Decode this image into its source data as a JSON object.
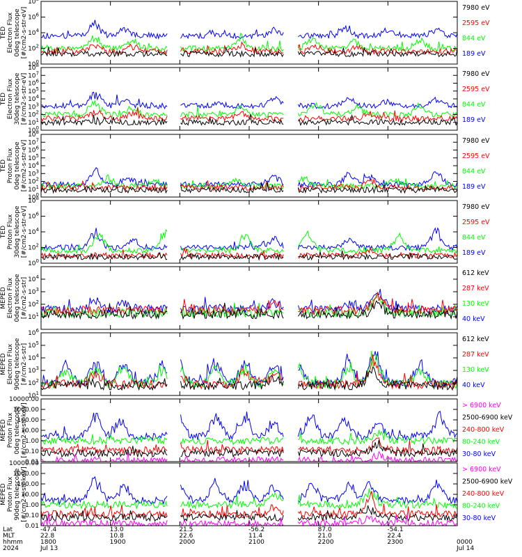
{
  "colors": {
    "blue": "#0000ff",
    "red": "#ff0000",
    "green": "#00ff00",
    "black": "#000000",
    "magenta": "#ff00ff"
  },
  "chart_data": [
    {
      "type": "line",
      "scale": "log",
      "ylim_exp": [
        0,
        8
      ],
      "ylabel": [
        "TED",
        "Electron Flux",
        "0deg telescope",
        "[#/cm2-s-str-eV]"
      ],
      "tick_exps": [
        0,
        2,
        4,
        6,
        8
      ],
      "series": [
        {
          "name": "189 eV",
          "color": "#0000ff",
          "base": 3.6,
          "peaks": [
            [
              0.13,
              1.8
            ],
            [
              0.2,
              0.9
            ],
            [
              0.42,
              0.4
            ],
            [
              0.56,
              0.9
            ],
            [
              0.73,
              1.1
            ],
            [
              0.83,
              0.7
            ],
            [
              0.95,
              0.9
            ]
          ]
        },
        {
          "name": "844 eV",
          "color": "#00ff00",
          "base": 2.0,
          "peaks": [
            [
              0.13,
              1.4
            ],
            [
              0.22,
              1.2
            ],
            [
              0.48,
              1.3
            ],
            [
              0.65,
              1.4
            ],
            [
              0.75,
              1.0
            ],
            [
              0.91,
              1.4
            ]
          ]
        },
        {
          "name": "2595 eV",
          "color": "#ff0000",
          "base": 1.6,
          "peaks": [
            [
              0.13,
              0.9
            ],
            [
              0.22,
              0.8
            ],
            [
              0.48,
              1.0
            ],
            [
              0.66,
              0.8
            ],
            [
              0.76,
              0.6
            ]
          ]
        },
        {
          "name": "7980 eV",
          "color": "#000000",
          "base": 1.3,
          "peaks": []
        }
      ],
      "legend": [
        "7980 eV",
        "2595 eV",
        "844 eV",
        "189 eV"
      ]
    },
    {
      "type": "line",
      "scale": "log",
      "ylim_exp": [
        0,
        8
      ],
      "ylabel": [
        "TED",
        "Electron Flux",
        "30deg telescope",
        "[#/cm2-s-str-eV]"
      ],
      "tick_exps": [
        0,
        1,
        2,
        3,
        4,
        5,
        6,
        7,
        8
      ],
      "series": [
        {
          "name": "189 eV",
          "color": "#0000ff",
          "base": 3.1,
          "peaks": [
            [
              0.13,
              1.9
            ],
            [
              0.2,
              1.0
            ],
            [
              0.43,
              0.4
            ],
            [
              0.56,
              1.0
            ],
            [
              0.74,
              1.2
            ],
            [
              0.83,
              0.8
            ],
            [
              0.95,
              0.9
            ]
          ]
        },
        {
          "name": "844 eV",
          "color": "#00ff00",
          "base": 2.0,
          "peaks": [
            [
              0.13,
              1.7
            ],
            [
              0.22,
              1.0
            ],
            [
              0.48,
              1.3
            ],
            [
              0.66,
              1.5
            ],
            [
              0.76,
              1.1
            ],
            [
              0.91,
              1.4
            ]
          ]
        },
        {
          "name": "2595 eV",
          "color": "#ff0000",
          "base": 1.5,
          "peaks": [
            [
              0.13,
              1.0
            ],
            [
              0.22,
              0.8
            ],
            [
              0.48,
              0.9
            ],
            [
              0.79,
              0.8
            ]
          ]
        },
        {
          "name": "7980 eV",
          "color": "#000000",
          "base": 1.0,
          "peaks": []
        }
      ],
      "legend": [
        "7980 eV",
        "2595 eV",
        "844 eV",
        "189 eV"
      ]
    },
    {
      "type": "line",
      "scale": "log",
      "ylim_exp": [
        0,
        8
      ],
      "ylabel": [
        "TED",
        "Proton Flux",
        "0deg telescope",
        "[#/cm2-s-str-eV]"
      ],
      "tick_exps": [
        0,
        1,
        2,
        3,
        4,
        5,
        6,
        7,
        8
      ],
      "series": [
        {
          "name": "189 eV",
          "color": "#0000ff",
          "base": 1.6,
          "peaks": [
            [
              0.13,
              2.0
            ],
            [
              0.21,
              1.2
            ],
            [
              0.56,
              1.4
            ],
            [
              0.74,
              1.5
            ],
            [
              0.79,
              1.1
            ],
            [
              0.95,
              1.8
            ]
          ]
        },
        {
          "name": "844 eV",
          "color": "#00ff00",
          "base": 1.4,
          "peaks": [
            [
              0.16,
              1.2
            ],
            [
              0.27,
              0.9
            ],
            [
              0.47,
              1.0
            ],
            [
              0.63,
              1.2
            ],
            [
              0.85,
              1.0
            ]
          ]
        },
        {
          "name": "2595 eV",
          "color": "#ff0000",
          "base": 1.2,
          "peaks": [
            [
              0.79,
              1.3
            ]
          ]
        },
        {
          "name": "7980 eV",
          "color": "#000000",
          "base": 0.9,
          "peaks": []
        }
      ],
      "legend": [
        "7980 eV",
        "2595 eV",
        "844 eV",
        "189 eV"
      ]
    },
    {
      "type": "line",
      "scale": "log",
      "ylim_exp": [
        0,
        8
      ],
      "ylabel": [
        "TED",
        "Proton Flux",
        "30deg telescope",
        "[#/cm2-s-str-eV]"
      ],
      "tick_exps": [
        0,
        2,
        4,
        6,
        8
      ],
      "series": [
        {
          "name": "189 eV",
          "color": "#0000ff",
          "base": 2.0,
          "peaks": [
            [
              0.13,
              2.3
            ],
            [
              0.22,
              1.2
            ],
            [
              0.56,
              1.3
            ],
            [
              0.74,
              1.5
            ],
            [
              0.95,
              2.4
            ]
          ]
        },
        {
          "name": "844 eV",
          "color": "#00ff00",
          "base": 1.6,
          "peaks": [
            [
              0.14,
              2.4
            ],
            [
              0.3,
              3.0
            ],
            [
              0.49,
              2.5
            ],
            [
              0.64,
              2.7
            ],
            [
              0.86,
              2.2
            ]
          ]
        },
        {
          "name": "2595 eV",
          "color": "#ff0000",
          "base": 1.0,
          "peaks": [
            [
              0.79,
              0.8
            ]
          ]
        },
        {
          "name": "7980 eV",
          "color": "#000000",
          "base": 0.8,
          "peaks": []
        }
      ],
      "legend": [
        "7980 eV",
        "2595 eV",
        "844 eV",
        "189 eV"
      ]
    },
    {
      "type": "line",
      "scale": "log",
      "ylim_exp": [
        0,
        5
      ],
      "ylabel": [
        "MEPED",
        "Electron Flux",
        "0deg telescope",
        "[#/cm2-s-str]"
      ],
      "tick_exps": [
        1,
        2,
        3,
        4
      ],
      "series": [
        {
          "name": "40 keV",
          "color": "#0000ff",
          "base": 1.6,
          "peaks": [
            [
              0.13,
              0.8
            ],
            [
              0.2,
              0.6
            ],
            [
              0.56,
              0.8
            ],
            [
              0.74,
              0.6
            ],
            [
              0.81,
              1.7
            ]
          ]
        },
        {
          "name": "130 keV",
          "color": "#00ff00",
          "base": 1.3,
          "peaks": [
            [
              0.81,
              1.5
            ]
          ]
        },
        {
          "name": "287 keV",
          "color": "#ff0000",
          "base": 1.5,
          "peaks": [
            [
              0.56,
              0.6
            ],
            [
              0.81,
              1.6
            ]
          ]
        },
        {
          "name": "612 keV",
          "color": "#000000",
          "base": 1.2,
          "peaks": [
            [
              0.81,
              1.0
            ]
          ]
        }
      ],
      "legend": [
        "612 keV",
        "287 keV",
        "130 keV",
        "40 keV"
      ]
    },
    {
      "type": "line",
      "scale": "log",
      "ylim_exp": [
        1,
        6
      ],
      "ylabel": [
        "MEPED",
        "Electron Flux",
        "90deg telescope",
        "[#/cm2-s-str]"
      ],
      "tick_exps": [
        1,
        2,
        3,
        4,
        5,
        6
      ],
      "series": [
        {
          "name": "40 keV",
          "color": "#0000ff",
          "base": 2.0,
          "peaks": [
            [
              0.06,
              1.6
            ],
            [
              0.13,
              1.8
            ],
            [
              0.2,
              1.8
            ],
            [
              0.29,
              1.6
            ],
            [
              0.33,
              1.8
            ],
            [
              0.42,
              1.7
            ],
            [
              0.49,
              1.9
            ],
            [
              0.56,
              1.6
            ],
            [
              0.62,
              1.7
            ],
            [
              0.74,
              1.8
            ],
            [
              0.8,
              2.9
            ],
            [
              0.91,
              1.7
            ]
          ]
        },
        {
          "name": "130 keV",
          "color": "#00ff00",
          "base": 1.9,
          "peaks": [
            [
              0.06,
              1.3
            ],
            [
              0.13,
              1.5
            ],
            [
              0.2,
              1.5
            ],
            [
              0.29,
              1.3
            ],
            [
              0.33,
              1.5
            ],
            [
              0.42,
              1.4
            ],
            [
              0.49,
              1.6
            ],
            [
              0.56,
              1.3
            ],
            [
              0.62,
              1.4
            ],
            [
              0.74,
              1.5
            ],
            [
              0.8,
              2.6
            ],
            [
              0.91,
              1.4
            ]
          ]
        },
        {
          "name": "287 keV",
          "color": "#ff0000",
          "base": 1.9,
          "peaks": [
            [
              0.13,
              1.1
            ],
            [
              0.33,
              1.1
            ],
            [
              0.49,
              1.2
            ],
            [
              0.56,
              1.0
            ],
            [
              0.8,
              2.3
            ]
          ]
        },
        {
          "name": "612 keV",
          "color": "#000000",
          "base": 1.8,
          "peaks": [
            [
              0.56,
              0.8
            ],
            [
              0.8,
              1.5
            ]
          ]
        }
      ],
      "legend": [
        "612 keV",
        "287 keV",
        "130 keV",
        "40 keV"
      ]
    },
    {
      "type": "line",
      "scale": "log",
      "ylim_exp": [
        -2,
        4
      ],
      "ylabel": [
        "MEPED",
        "Proton Flux",
        "0deg telescope",
        "[#/cm2-s-str-keV]"
      ],
      "tick_labels": [
        [
          "10000.00",
          4
        ],
        [
          "1000.00",
          3
        ],
        [
          "100.00",
          2
        ],
        [
          "10.00",
          1
        ],
        [
          "1.00",
          0
        ],
        [
          "0.10",
          -1
        ],
        [
          "0.01",
          -2
        ]
      ],
      "series": [
        {
          "name": "30-80 keV",
          "color": "#0000ff",
          "base": 0.4,
          "peaks": [
            [
              0.13,
              2.7
            ],
            [
              0.19,
              1.8
            ],
            [
              0.33,
              2.2
            ],
            [
              0.42,
              2.3
            ],
            [
              0.49,
              2.0
            ],
            [
              0.56,
              1.4
            ],
            [
              0.65,
              2.2
            ],
            [
              0.73,
              2.0
            ],
            [
              0.81,
              1.6
            ],
            [
              0.96,
              2.4
            ]
          ]
        },
        {
          "name": "80-240 keV",
          "color": "#00ff00",
          "base": 0.0,
          "peaks": [
            [
              0.81,
              0.9
            ]
          ]
        },
        {
          "name": "240-800 keV",
          "color": "#ff0000",
          "base": -0.9,
          "peaks": [
            [
              0.81,
              1.1
            ]
          ]
        },
        {
          "name": "2500-6900 keV",
          "color": "#000000",
          "base": -1.2,
          "peaks": [
            [
              0.81,
              1.0
            ]
          ]
        },
        {
          "name": "> 6900 keV",
          "color": "#ff00ff",
          "base": -1.9,
          "peaks": [
            [
              0.81,
              0.6
            ]
          ]
        }
      ],
      "legend": [
        "> 6900 keV",
        "2500-6900 keV",
        "240-800 keV",
        "80-240 keV",
        "30-80 keV"
      ]
    },
    {
      "type": "line",
      "scale": "log",
      "ylim_exp": [
        -2,
        4
      ],
      "ylabel": [
        "MEPED",
        "Proton Flux",
        "90deg telescope",
        "[#/cm2-s-str-keV]"
      ],
      "tick_labels": [
        [
          "10000.00",
          4
        ],
        [
          "1000.00",
          3
        ],
        [
          "100.00",
          2
        ],
        [
          "10.00",
          1
        ],
        [
          "1.00",
          0
        ],
        [
          "0.10",
          -1
        ],
        [
          "0.01",
          -2
        ]
      ],
      "series": [
        {
          "name": "30-80 keV",
          "color": "#0000ff",
          "base": 0.4,
          "peaks": [
            [
              0.13,
              2.2
            ],
            [
              0.2,
              1.5
            ],
            [
              0.33,
              2.0
            ],
            [
              0.42,
              2.0
            ],
            [
              0.49,
              1.9
            ],
            [
              0.56,
              1.6
            ],
            [
              0.65,
              2.1
            ],
            [
              0.74,
              1.8
            ],
            [
              0.79,
              1.9
            ],
            [
              0.95,
              2.1
            ]
          ]
        },
        {
          "name": "80-240 keV",
          "color": "#00ff00",
          "base": 0.0,
          "peaks": [
            [
              0.56,
              1.0
            ],
            [
              0.79,
              1.6
            ]
          ]
        },
        {
          "name": "240-800 keV",
          "color": "#ff0000",
          "base": -0.9,
          "peaks": [
            [
              0.56,
              0.9
            ],
            [
              0.79,
              1.7
            ]
          ]
        },
        {
          "name": "2500-6900 keV",
          "color": "#000000",
          "base": -1.2,
          "peaks": [
            [
              0.79,
              1.0
            ]
          ]
        },
        {
          "name": "> 6900 keV",
          "color": "#ff00ff",
          "base": -1.8,
          "peaks": [
            [
              0.79,
              0.6
            ]
          ]
        }
      ],
      "legend": [
        "> 6900 keV",
        "2500-6900 keV",
        "240-800 keV",
        "80-240 keV",
        "30-80 keV"
      ]
    }
  ],
  "xaxis": {
    "row_labels": [
      "Lat",
      "MLT",
      "hhmm",
      "2024"
    ],
    "ticks": [
      {
        "lat": "-47.4",
        "mlt": "22.8",
        "hhmm": "1800",
        "date": "Jul 13"
      },
      {
        "lat": "13.0",
        "mlt": "10.8",
        "hhmm": "1900",
        "date": ""
      },
      {
        "lat": "21.5",
        "mlt": "22.6",
        "hhmm": "2000",
        "date": ""
      },
      {
        "lat": "-56.2",
        "mlt": "11.4",
        "hhmm": "2100",
        "date": ""
      },
      {
        "lat": "87.0",
        "mlt": "21.0",
        "hhmm": "2200",
        "date": ""
      },
      {
        "lat": "-54.1",
        "mlt": "22.4",
        "hhmm": "2300",
        "date": ""
      },
      {
        "lat": "",
        "mlt": "",
        "hhmm": "0000",
        "date": "Jul 14"
      }
    ]
  }
}
